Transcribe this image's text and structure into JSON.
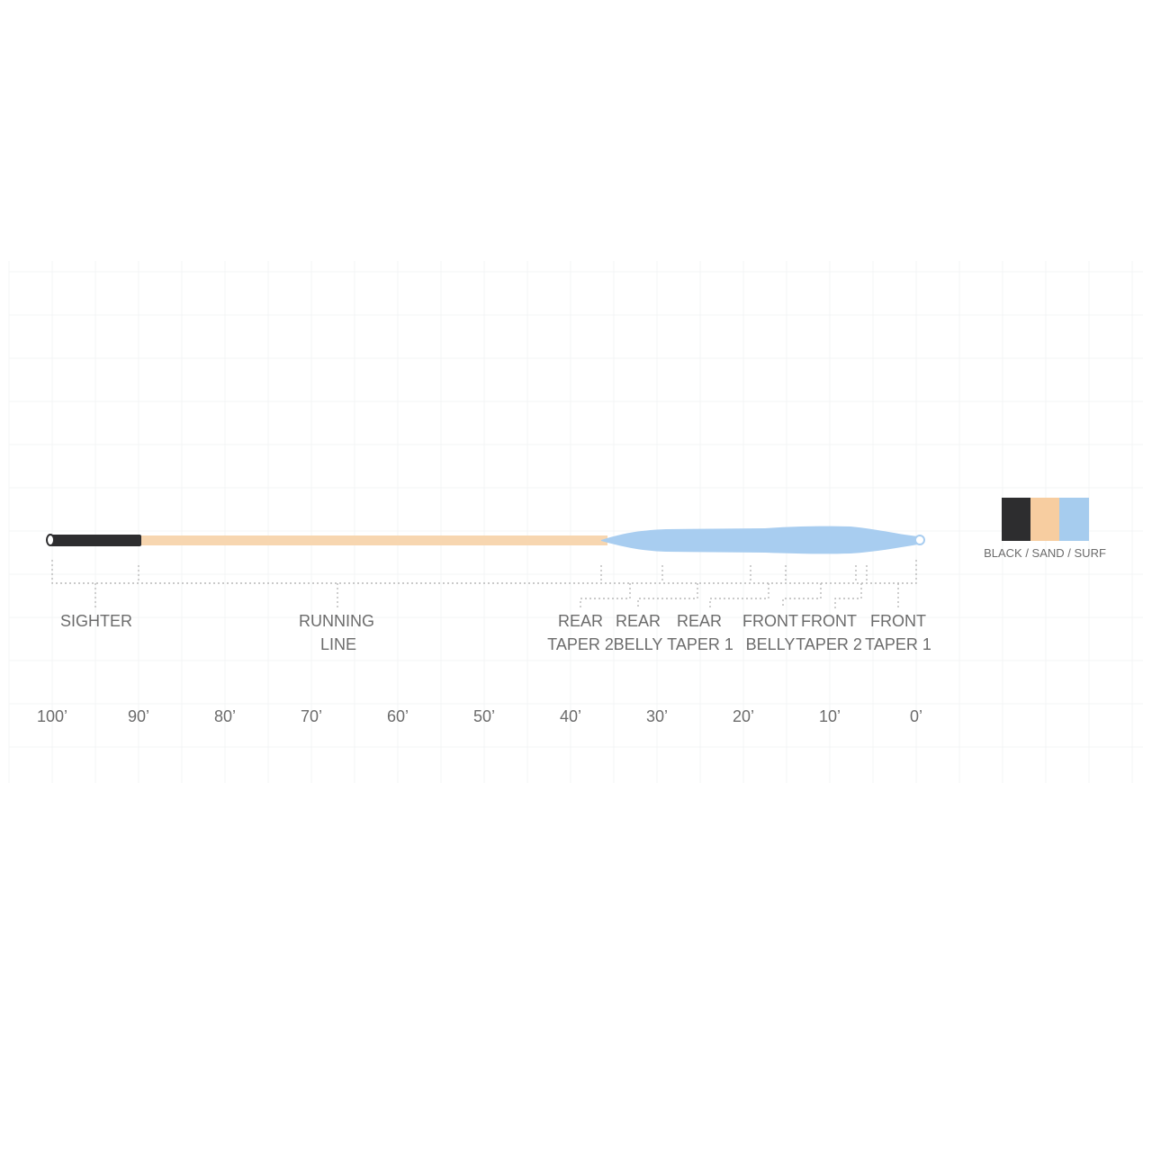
{
  "segments": [
    {
      "line1": "SIGHTER",
      "line2": ""
    },
    {
      "line1": "RUNNING",
      "line2": "LINE"
    },
    {
      "line1": "REAR",
      "line2": "TAPER 2"
    },
    {
      "line1": "REAR",
      "line2": "BELLY"
    },
    {
      "line1": "REAR",
      "line2": "TAPER 1"
    },
    {
      "line1": "FRONT",
      "line2": "BELLY"
    },
    {
      "line1": "FRONT",
      "line2": "TAPER 2"
    },
    {
      "line1": "FRONT",
      "line2": "TAPER 1"
    }
  ],
  "scale": [
    "100’",
    "90’",
    "80’",
    "70’",
    "60’",
    "50’",
    "40’",
    "30’",
    "20’",
    "10’",
    "0’"
  ],
  "swatches": {
    "label": "BLACK / SAND / SURF",
    "colors": [
      "#2d2d2f",
      "#f7cda0",
      "#a6ccee"
    ]
  },
  "line_colors": {
    "sighter": "#2d2d2f",
    "running_line": "#f7d6b0",
    "head": "#a8cdf0"
  }
}
